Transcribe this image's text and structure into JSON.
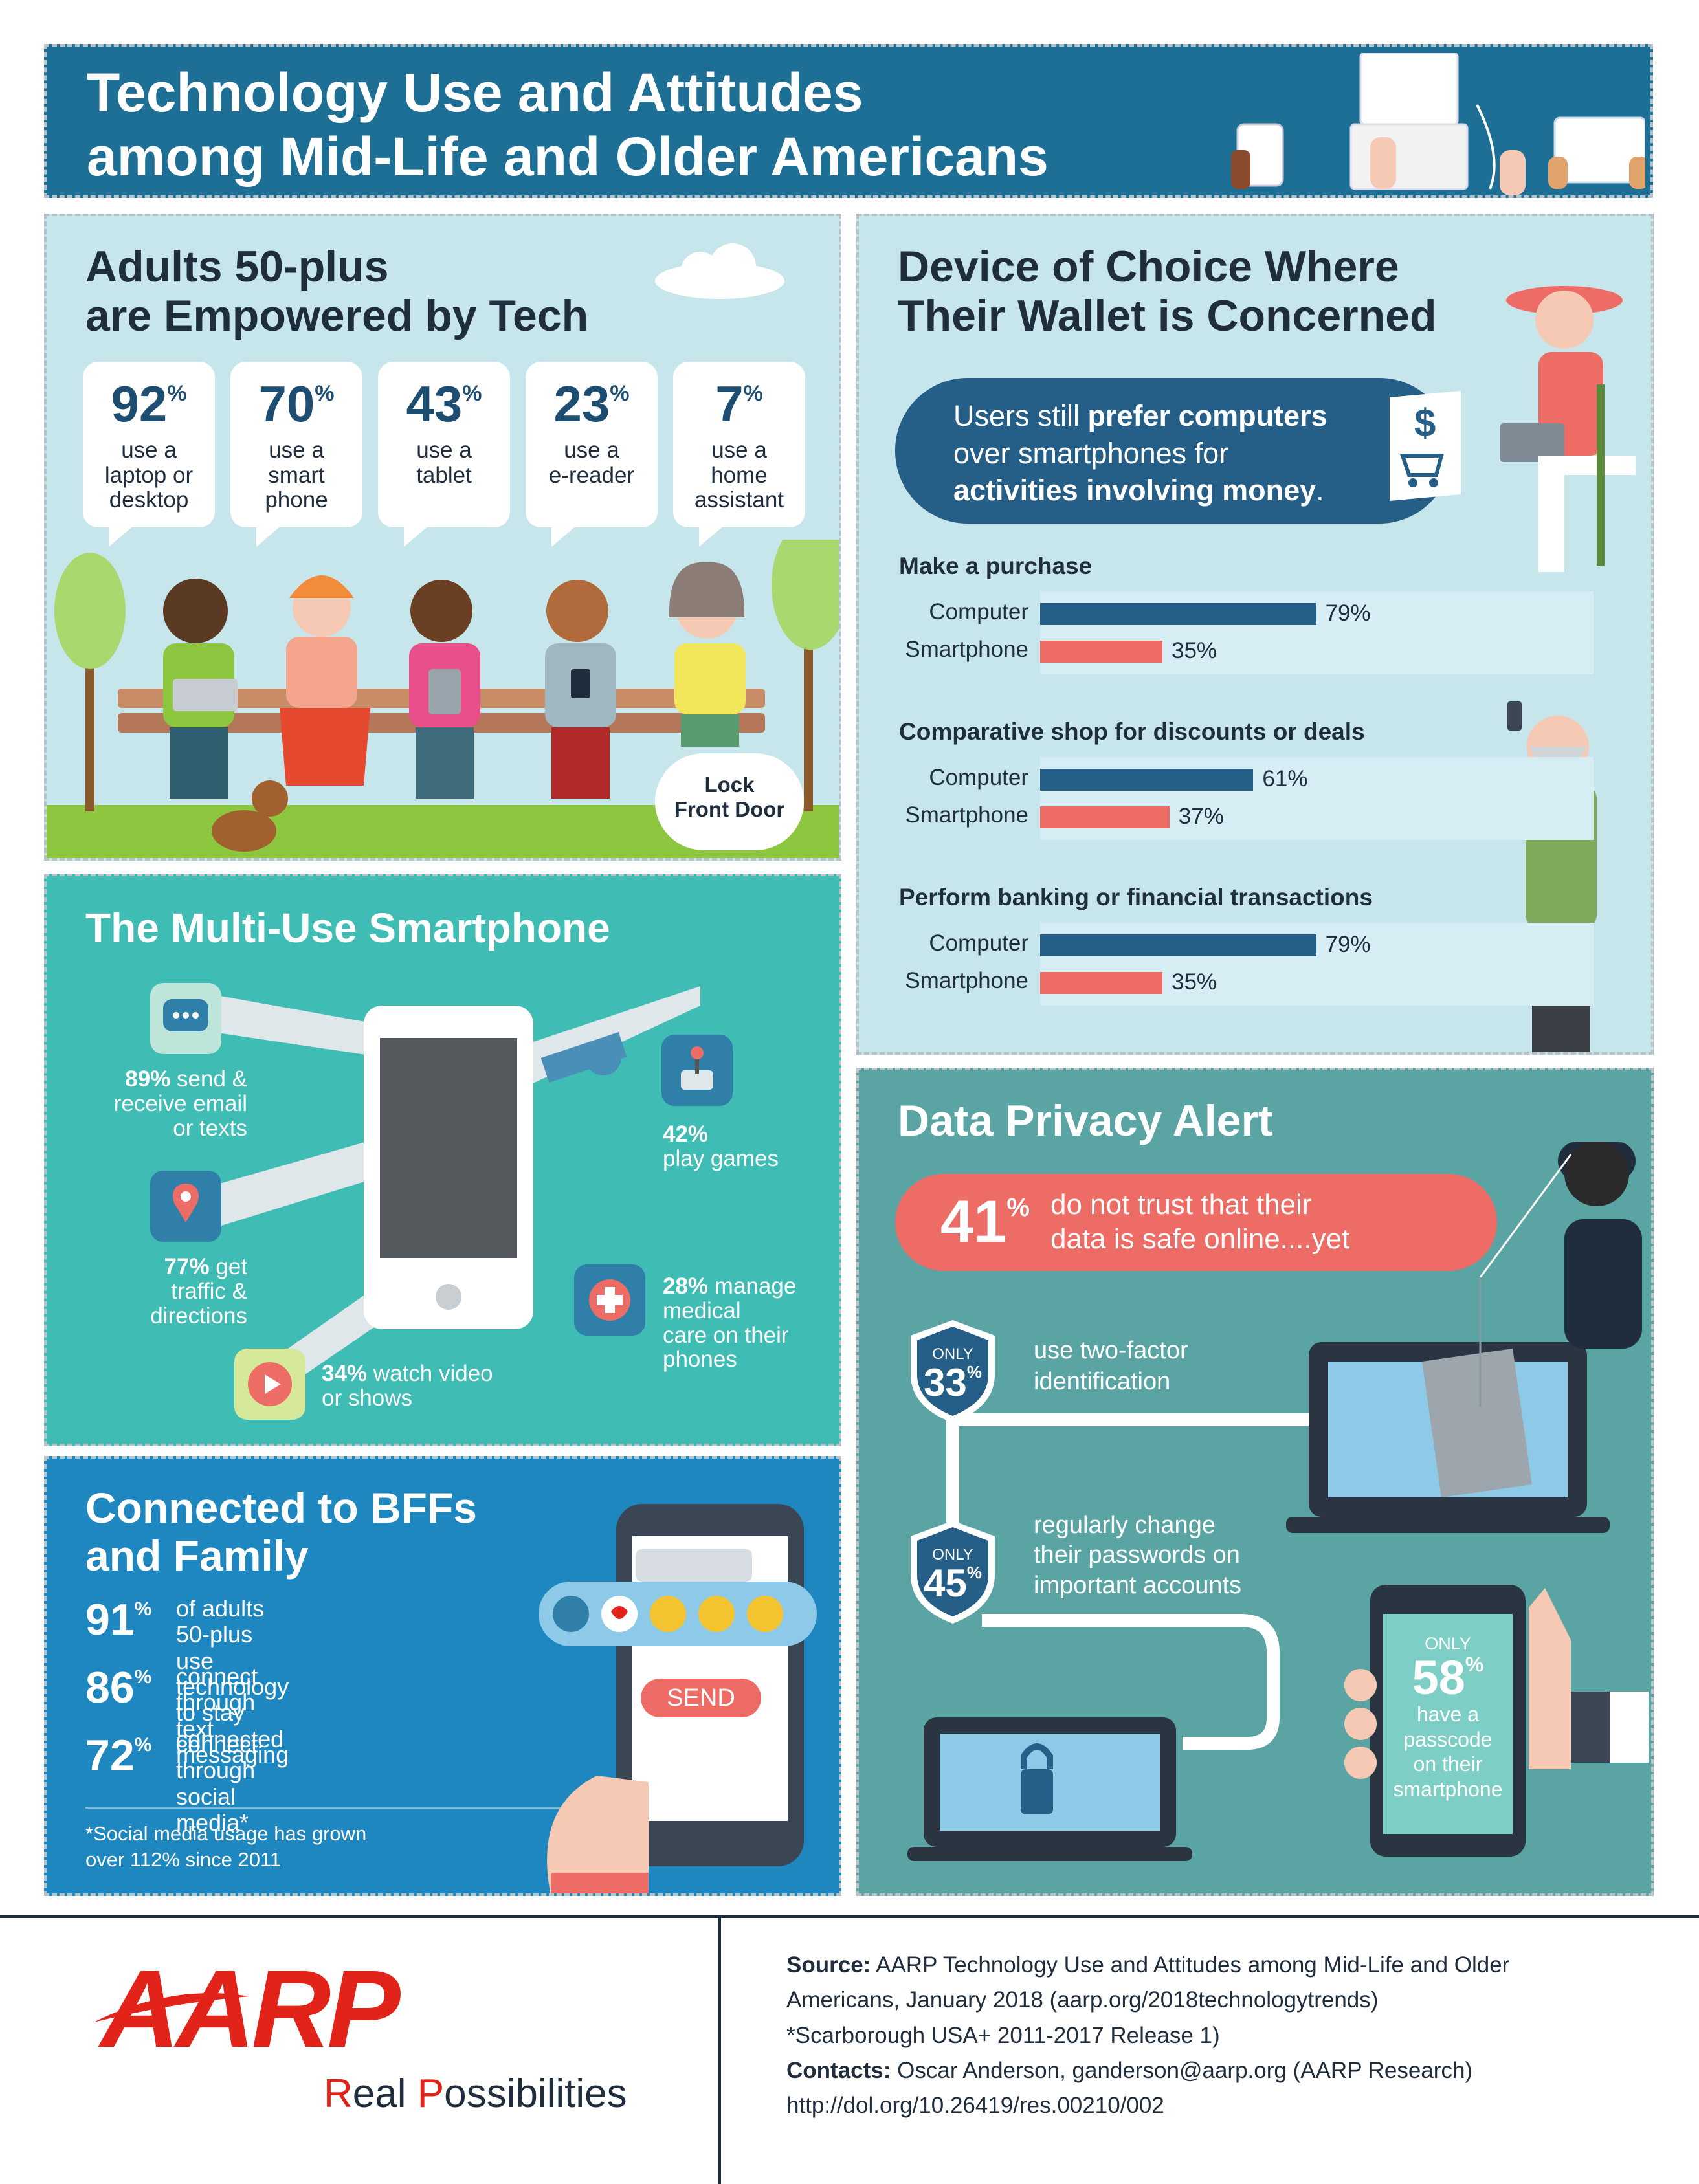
{
  "header": {
    "title_line1": "Technology Use and Attitudes",
    "title_line2": "among Mid-Life and Older Americans"
  },
  "empowered": {
    "title_line1": "Adults 50-plus",
    "title_line2": "are Empowered by Tech",
    "stats": [
      {
        "value": "92",
        "unit": "%",
        "label": "use a\nlaptop or\ndesktop"
      },
      {
        "value": "70",
        "unit": "%",
        "label": "use a\nsmart\nphone"
      },
      {
        "value": "43",
        "unit": "%",
        "label": "use a\ntablet"
      },
      {
        "value": "23",
        "unit": "%",
        "label": "use a\ne-reader"
      },
      {
        "value": "7",
        "unit": "%",
        "label": "use a\nhome\nassistant"
      }
    ],
    "cloud_line1": "Lock",
    "cloud_line2": "Front Door"
  },
  "multi_use": {
    "title": "The Multi-Use Smartphone",
    "items": [
      {
        "pct": "89%",
        "text_line1": "send &",
        "text_line2": "receive email",
        "text_line3": "or texts",
        "icon": "chat-icon"
      },
      {
        "pct": "77%",
        "text_line1": "get",
        "text_line2": "traffic &",
        "text_line3": "directions",
        "icon": "map-pin-icon"
      },
      {
        "pct": "34%",
        "text_line1": "watch video",
        "text_line2": "or shows",
        "icon": "play-icon"
      },
      {
        "pct": "42%",
        "text_line1": "play games",
        "icon": "joystick-icon"
      },
      {
        "pct": "28%",
        "text_line1": "manage",
        "text_line2": "medical",
        "text_line3": "care on their",
        "text_line4": "phones",
        "icon": "medical-cross-icon"
      }
    ]
  },
  "bffs": {
    "title_line1": "Connected to BFFs",
    "title_line2": "and Family",
    "stats": [
      {
        "value": "91",
        "unit": "%",
        "text": "of adults 50-plus use\ntechnology to stay connected"
      },
      {
        "value": "86",
        "unit": "%",
        "text": "connect through\ntext messaging"
      },
      {
        "value": "72",
        "unit": "%",
        "text": "connect through\nsocial media*"
      }
    ],
    "footnote_line1": "*Social media usage has grown",
    "footnote_line2": "over 112% since 2011",
    "send_label": "SEND"
  },
  "wallet": {
    "title_line1": "Device of Choice Where",
    "title_line2": "Their Wallet is Concerned",
    "callout_line1": "Users still ",
    "callout_bold1": "prefer computers",
    "callout_line2": "over smartphones for",
    "callout_bold2": "activities involving money",
    "callout_end": "."
  },
  "privacy": {
    "title": "Data Privacy Alert",
    "trust_value": "41",
    "trust_unit": "%",
    "trust_text_line1": "do not trust that their",
    "trust_text_line2": "data is safe online....yet",
    "only_label": "ONLY",
    "two_factor_value": "33",
    "two_factor_text_line1": "use two-factor",
    "two_factor_text_line2": "identification",
    "passwords_value": "45",
    "passwords_text_line1": "regularly change",
    "passwords_text_line2": "their passwords on",
    "passwords_text_line3": "important accounts",
    "passcode_value": "58",
    "passcode_text_line1": "have a",
    "passcode_text_line2": "passcode",
    "passcode_text_line3": "on their",
    "passcode_text_line4": "smartphone",
    "unit": "%"
  },
  "footer": {
    "logo": "AARP",
    "tagline_R": "R",
    "tagline_eal": "eal ",
    "tagline_P": "P",
    "tagline_rest": "ossibilities",
    "source_label": "Source:",
    "source_text1": " AARP Technology Use and Attitudes among Mid-Life and Older",
    "source_text2": "Americans, January 2018 (aarp.org/2018technologytrends)",
    "source_text3": "*Scarborough USA+ 2011-2017 Release 1)",
    "contacts_label": "Contacts:",
    "contacts_text": " Oscar Anderson, ganderson@aarp.org (AARP Research)",
    "doi": "http://dol.org/10.26419/res.00210/002"
  },
  "colors": {
    "computer": "#255f87",
    "smartphone": "#ee6c66",
    "header": "#1d6f96",
    "aarp_red": "#e2231a"
  },
  "chart_data": {
    "type": "bar",
    "orientation": "horizontal",
    "groups": [
      "Make a purchase",
      "Comparative shop for discounts or deals",
      "Perform banking or financial transactions"
    ],
    "categories": [
      "Make a purchase",
      "Comparative shop for discounts or deals",
      "Perform banking or financial transactions"
    ],
    "series": [
      {
        "name": "Computer",
        "values": [
          79,
          61,
          79
        ]
      },
      {
        "name": "Smartphone",
        "values": [
          35,
          37,
          35
        ]
      }
    ],
    "value_labels": {
      "Computer": [
        "79%",
        "61%",
        "79%"
      ],
      "Smartphone": [
        "35%",
        "37%",
        "35%"
      ]
    },
    "unit": "%",
    "xlim": [
      0,
      100
    ]
  }
}
